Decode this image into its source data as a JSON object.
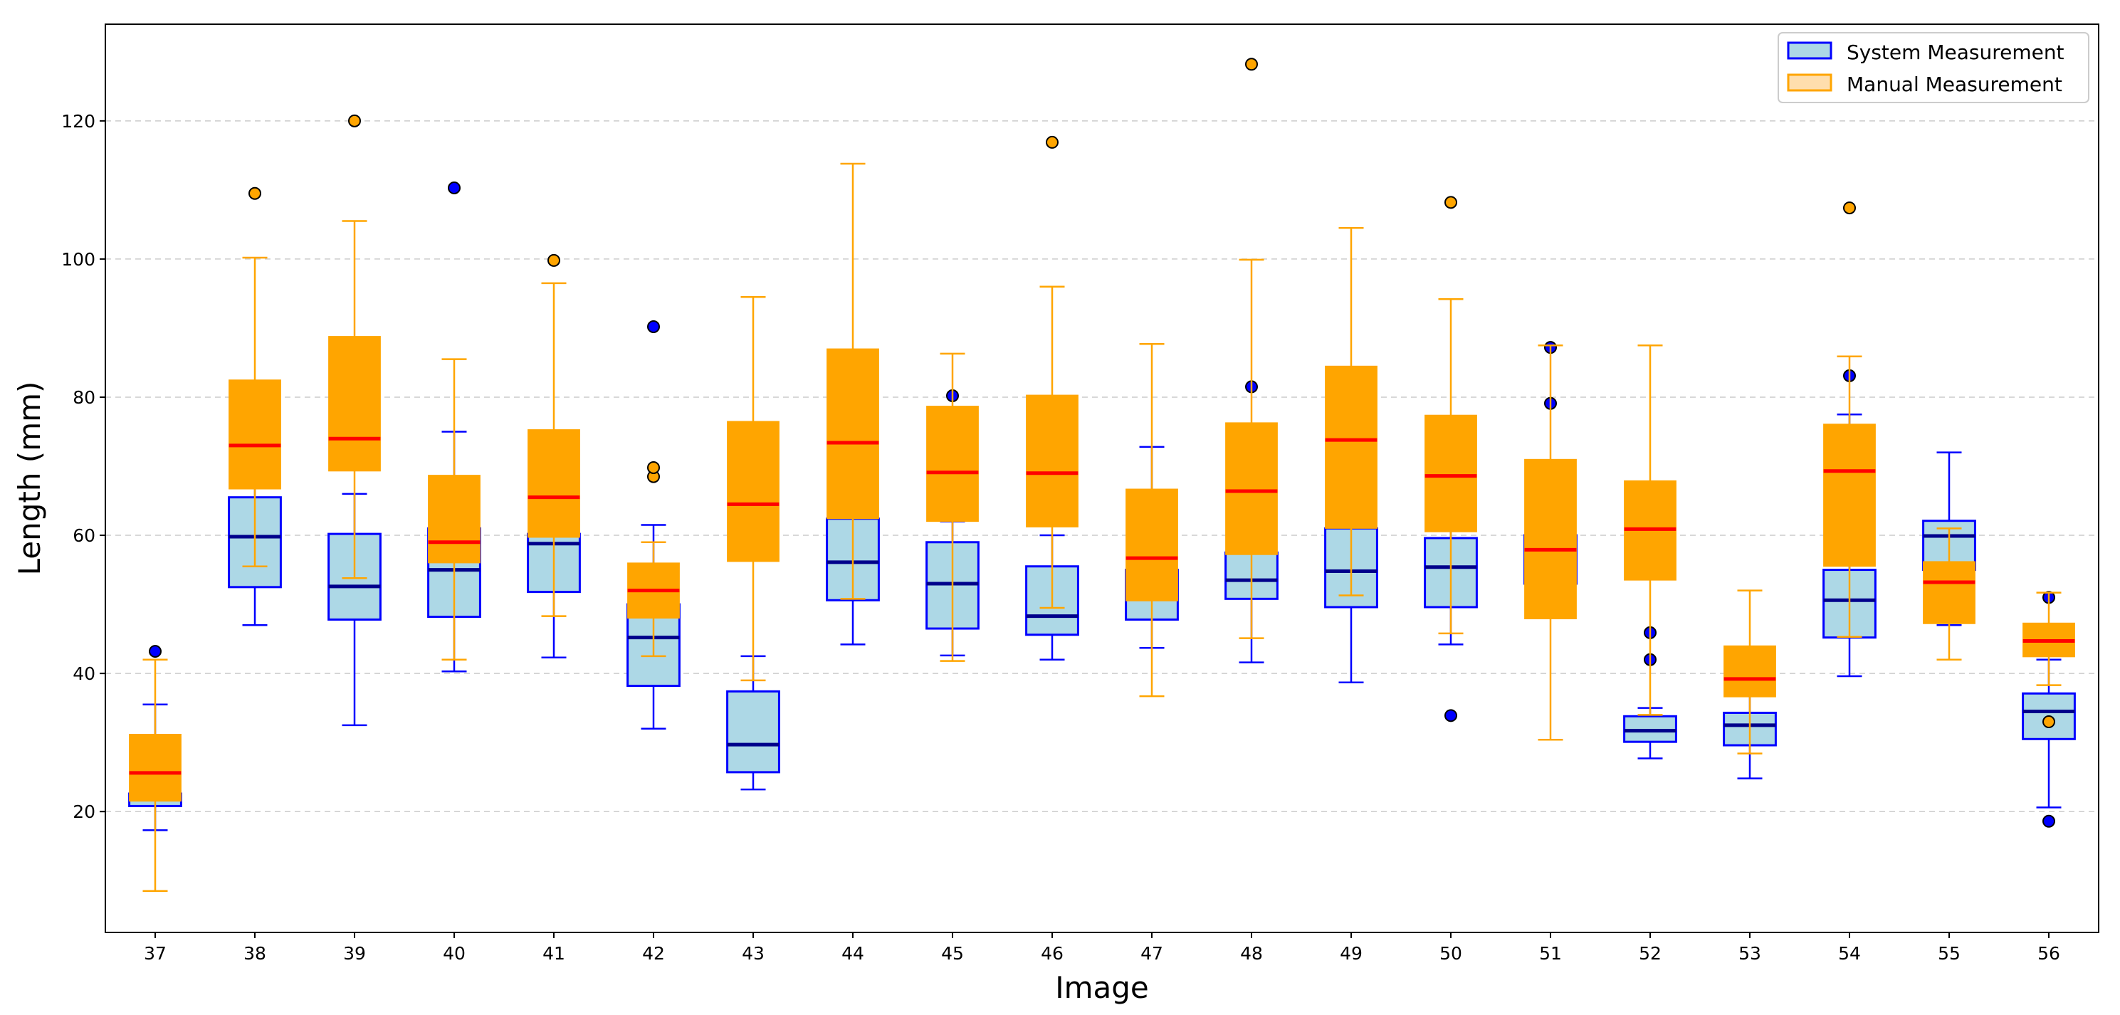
{
  "chart_data": {
    "type": "boxplot",
    "title": "",
    "xlabel": "Image",
    "ylabel": "Length (mm)",
    "ylim": [
      2.5,
      134
    ],
    "yticks": [
      20,
      40,
      60,
      80,
      100,
      120
    ],
    "grid": "y-dashed",
    "legend_placement": "top-right",
    "categories": [
      "37",
      "38",
      "39",
      "40",
      "41",
      "42",
      "43",
      "44",
      "45",
      "46",
      "47",
      "48",
      "49",
      "50",
      "51",
      "52",
      "53",
      "54",
      "55",
      "56"
    ],
    "series": [
      {
        "name": "System Measurement",
        "fill": "#add8e6",
        "edge": "#0000ff",
        "median_color": "#00008b",
        "flier_color": "#0000ff",
        "boxes": [
          {
            "lo": 17.3,
            "q1": 20.8,
            "med": 22.0,
            "q3": 22.6,
            "hi": 35.5,
            "fliers": [
              43.2
            ]
          },
          {
            "lo": 47.0,
            "q1": 52.5,
            "med": 59.8,
            "q3": 65.5,
            "hi": 67.0,
            "fliers": []
          },
          {
            "lo": 32.5,
            "q1": 47.8,
            "med": 52.6,
            "q3": 60.2,
            "hi": 66.0,
            "fliers": []
          },
          {
            "lo": 40.3,
            "q1": 48.2,
            "med": 55.0,
            "q3": 61.0,
            "hi": 75.0,
            "fliers": [
              110.3
            ]
          },
          {
            "lo": 42.3,
            "q1": 51.8,
            "med": 58.8,
            "q3": 60.2,
            "hi": 62.0,
            "fliers": []
          },
          {
            "lo": 32.0,
            "q1": 38.2,
            "med": 45.2,
            "q3": 50.0,
            "hi": 61.5,
            "fliers": [
              90.2
            ]
          },
          {
            "lo": 23.2,
            "q1": 25.7,
            "med": 29.7,
            "q3": 37.4,
            "hi": 42.5,
            "fliers": []
          },
          {
            "lo": 44.2,
            "q1": 50.6,
            "med": 56.1,
            "q3": 62.4,
            "hi": 64.0,
            "fliers": []
          },
          {
            "lo": 42.6,
            "q1": 46.5,
            "med": 53.0,
            "q3": 59.0,
            "hi": 62.0,
            "fliers": [
              80.2
            ]
          },
          {
            "lo": 42.0,
            "q1": 45.6,
            "med": 48.3,
            "q3": 55.5,
            "hi": 60.0,
            "fliers": []
          },
          {
            "lo": 43.7,
            "q1": 47.8,
            "med": 52.7,
            "q3": 55.0,
            "hi": 72.8,
            "fliers": []
          },
          {
            "lo": 41.6,
            "q1": 50.8,
            "med": 53.5,
            "q3": 57.5,
            "hi": 60.0,
            "fliers": [
              81.5
            ]
          },
          {
            "lo": 38.7,
            "q1": 49.6,
            "med": 54.8,
            "q3": 61.0,
            "hi": 63.0,
            "fliers": []
          },
          {
            "lo": 44.2,
            "q1": 49.6,
            "med": 55.4,
            "q3": 59.6,
            "hi": 62.0,
            "fliers": [
              33.9
            ]
          },
          {
            "lo": 50.0,
            "q1": 53.0,
            "med": 56.2,
            "q3": 60.0,
            "hi": 66.0,
            "fliers": [
              87.2,
              79.1
            ]
          },
          {
            "lo": 27.7,
            "q1": 30.1,
            "med": 31.7,
            "q3": 33.8,
            "hi": 35.0,
            "fliers": [
              45.9,
              42.0
            ]
          },
          {
            "lo": 24.8,
            "q1": 29.6,
            "med": 32.5,
            "q3": 34.3,
            "hi": 37.0,
            "fliers": []
          },
          {
            "lo": 39.6,
            "q1": 45.2,
            "med": 50.6,
            "q3": 55.0,
            "hi": 77.5,
            "fliers": [
              83.1
            ]
          },
          {
            "lo": 47.0,
            "q1": 55.0,
            "med": 59.9,
            "q3": 62.1,
            "hi": 72.0,
            "fliers": []
          },
          {
            "lo": 20.6,
            "q1": 30.5,
            "med": 34.5,
            "q3": 37.1,
            "hi": 42.0,
            "fliers": [
              18.6,
              51.0
            ]
          }
        ]
      },
      {
        "name": "Manual Measurement",
        "fill": "#ffa500",
        "edge": "#ffa500",
        "median_color": "#ff0000",
        "flier_color": "#ffa500",
        "boxes": [
          {
            "lo": 8.5,
            "q1": 21.5,
            "med": 25.6,
            "q3": 31.2,
            "hi": 42.0,
            "fliers": []
          },
          {
            "lo": 55.5,
            "q1": 66.7,
            "med": 73.0,
            "q3": 82.5,
            "hi": 100.2,
            "fliers": [
              109.5
            ]
          },
          {
            "lo": 53.8,
            "q1": 69.3,
            "med": 74.0,
            "q3": 88.8,
            "hi": 105.5,
            "fliers": [
              120.0
            ]
          },
          {
            "lo": 42.0,
            "q1": 56.0,
            "med": 59.0,
            "q3": 68.7,
            "hi": 85.5,
            "fliers": []
          },
          {
            "lo": 48.3,
            "q1": 59.7,
            "med": 65.5,
            "q3": 75.3,
            "hi": 96.5,
            "fliers": [
              99.8
            ]
          },
          {
            "lo": 42.5,
            "q1": 48.0,
            "med": 52.0,
            "q3": 56.0,
            "hi": 59.0,
            "fliers": [
              68.5,
              69.8
            ]
          },
          {
            "lo": 39.0,
            "q1": 56.2,
            "med": 64.5,
            "q3": 76.5,
            "hi": 94.5,
            "fliers": []
          },
          {
            "lo": 50.8,
            "q1": 62.4,
            "med": 73.4,
            "q3": 87.0,
            "hi": 113.8,
            "fliers": []
          },
          {
            "lo": 41.8,
            "q1": 62.0,
            "med": 69.1,
            "q3": 78.7,
            "hi": 86.3,
            "fliers": []
          },
          {
            "lo": 49.5,
            "q1": 61.2,
            "med": 69.0,
            "q3": 80.3,
            "hi": 96.0,
            "fliers": [
              116.9
            ]
          },
          {
            "lo": 36.7,
            "q1": 50.5,
            "med": 56.7,
            "q3": 66.7,
            "hi": 87.7,
            "fliers": []
          },
          {
            "lo": 45.1,
            "q1": 57.2,
            "med": 66.4,
            "q3": 76.3,
            "hi": 99.9,
            "fliers": [
              128.2
            ]
          },
          {
            "lo": 51.3,
            "q1": 61.0,
            "med": 73.8,
            "q3": 84.5,
            "hi": 104.5,
            "fliers": []
          },
          {
            "lo": 45.8,
            "q1": 60.5,
            "med": 68.6,
            "q3": 77.4,
            "hi": 94.2,
            "fliers": [
              108.2
            ]
          },
          {
            "lo": 30.4,
            "q1": 47.9,
            "med": 57.9,
            "q3": 71.0,
            "hi": 87.5,
            "fliers": []
          },
          {
            "lo": 34.0,
            "q1": 53.5,
            "med": 60.9,
            "q3": 67.9,
            "hi": 87.5,
            "fliers": []
          },
          {
            "lo": 28.4,
            "q1": 36.6,
            "med": 39.2,
            "q3": 44.0,
            "hi": 52.0,
            "fliers": []
          },
          {
            "lo": 45.3,
            "q1": 55.5,
            "med": 69.3,
            "q3": 76.1,
            "hi": 85.9,
            "fliers": [
              107.4
            ]
          },
          {
            "lo": 42.0,
            "q1": 47.2,
            "med": 53.2,
            "q3": 56.2,
            "hi": 61.0,
            "fliers": []
          },
          {
            "lo": 38.3,
            "q1": 42.4,
            "med": 44.7,
            "q3": 47.3,
            "hi": 51.7,
            "fliers": [
              33.0
            ]
          }
        ]
      }
    ],
    "legend": [
      {
        "label": "System Measurement",
        "fill": "#add8e6",
        "edge": "#0000ff"
      },
      {
        "label": "Manual Measurement",
        "fill": "#ffdead",
        "edge": "#ffa500"
      }
    ]
  }
}
